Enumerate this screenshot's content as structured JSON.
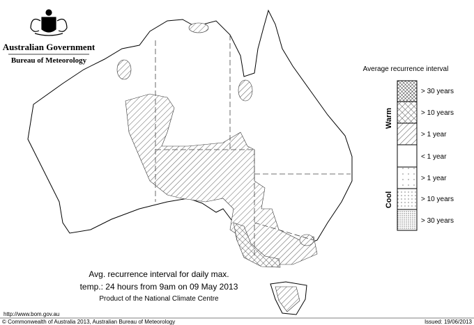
{
  "header": {
    "title": "Australian Government",
    "subtitle": "Bureau of Meteorology"
  },
  "legend": {
    "title": "Average recurrence interval",
    "warm_label": "Warm",
    "cool_label": "Cool",
    "items": [
      "> 30 years",
      "> 10 years",
      "> 1 year",
      "< 1 year",
      "> 1 year",
      "> 10 years",
      "> 30 years"
    ]
  },
  "caption": {
    "line1": "Avg. recurrence interval for daily max.",
    "line2": "temp.: 24 hours from 9am on 09 May 2013",
    "line3": "Product of the National Climate Centre"
  },
  "footer": {
    "url": "http://www.bom.gov.au",
    "copyright": "© Commonwealth of Australia 2013, Australian Bureau of Meteorology",
    "issued": "Issued: 19/06/2013"
  }
}
